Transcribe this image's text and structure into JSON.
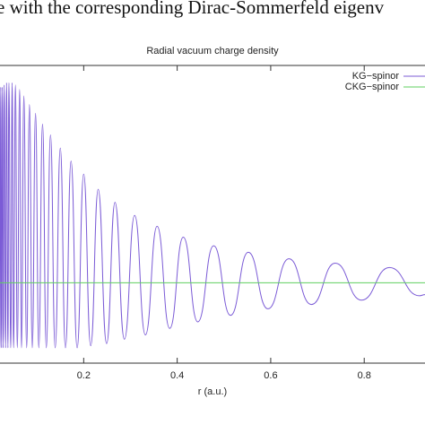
{
  "caption": "e with the corresponding Dirac-Sommerfeld eigenv",
  "chart_data": {
    "type": "line",
    "title": "Radial vacuum charge density",
    "xlabel": "r (a.u.)",
    "xlim": [
      0.021,
      0.93
    ],
    "xticks": [
      0.2,
      0.4,
      0.6,
      0.8
    ],
    "ylim": [
      -0.37,
      1.0
    ],
    "legend": "top-right",
    "series": [
      {
        "name": "KG−spinor",
        "color": "#7b5bd6",
        "x": [
          0.021,
          0.0226,
          0.0243,
          0.0261,
          0.028,
          0.03,
          0.033,
          0.035,
          0.038,
          0.04,
          0.044,
          0.047,
          0.05,
          0.054,
          0.058,
          0.063,
          0.067,
          0.072,
          0.078,
          0.084,
          0.09,
          0.097,
          0.104,
          0.112,
          0.12,
          0.129,
          0.139,
          0.15,
          0.161,
          0.173,
          0.186,
          0.2,
          0.215,
          0.231,
          0.249,
          0.267,
          0.287,
          0.309,
          0.332,
          0.357,
          0.384,
          0.413,
          0.444,
          0.478,
          0.514,
          0.552,
          0.594,
          0.639,
          0.687,
          0.738,
          0.794,
          0.854,
          0.918,
          0.93
        ],
        "values": [
          -0.3,
          0.9,
          -0.3,
          0.9,
          -0.3,
          0.91,
          -0.3,
          0.92,
          -0.3,
          0.92,
          -0.3,
          0.92,
          -0.3,
          0.91,
          -0.3,
          0.89,
          -0.3,
          0.86,
          -0.3,
          0.82,
          -0.3,
          0.78,
          -0.3,
          0.73,
          -0.3,
          0.68,
          -0.3,
          0.62,
          -0.3,
          0.56,
          -0.3,
          0.5,
          -0.29,
          0.43,
          -0.28,
          0.37,
          -0.26,
          0.31,
          -0.24,
          0.26,
          -0.21,
          0.21,
          -0.18,
          0.17,
          -0.15,
          0.14,
          -0.12,
          0.11,
          -0.1,
          0.09,
          -0.08,
          0.07,
          -0.06,
          -0.055
        ]
      },
      {
        "name": "CKG−spinor",
        "color": "#5fcf5f",
        "x": [
          0.021,
          0.93
        ],
        "values": [
          0,
          0
        ]
      }
    ]
  }
}
